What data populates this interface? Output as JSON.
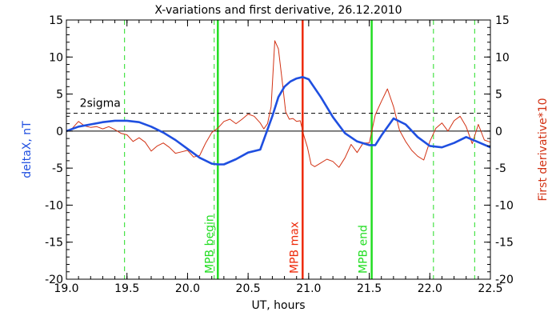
{
  "chart_data": {
    "type": "line",
    "title": "X-variations and first derivative, 26.12.2010",
    "xlabel": "UT, hours",
    "ylabel_left": "deltaX, nT",
    "ylabel_right": "First derivative*10",
    "xlim": [
      19.0,
      22.5
    ],
    "ylim": [
      -20,
      15
    ],
    "xticks": [
      "19.0",
      "19.5",
      "20.0",
      "20.5",
      "21.0",
      "21.5",
      "22.0",
      "22.5"
    ],
    "yticks_left": [
      "-20",
      "-15",
      "-10",
      "-5",
      "0",
      "5",
      "10",
      "15"
    ],
    "yticks_right": [
      "-20",
      "-15",
      "-10",
      "-5",
      "0",
      "5",
      "10",
      "15"
    ],
    "colors": {
      "deltaX": "#1f4fe0",
      "derivative": "#d23214",
      "mpb_begin_end": "#22dd22",
      "mpb_max": "#ee2a0a",
      "dashed_markers": "#22dd22",
      "axis": "#000000"
    },
    "threshold": {
      "label": "2sigma",
      "value": 2.4
    },
    "zero_line": 0,
    "vertical_markers": [
      {
        "label": "MPB begin",
        "x": 20.25,
        "color": "#22dd22",
        "style": "solid"
      },
      {
        "label": "MPB max",
        "x": 20.95,
        "color": "#ee2a0a",
        "style": "solid"
      },
      {
        "label": "MPB end",
        "x": 21.52,
        "color": "#22dd22",
        "style": "solid"
      }
    ],
    "dashed_markers": [
      19.48,
      20.22,
      22.03,
      22.37
    ],
    "series": [
      {
        "key": "deltaX",
        "x": [
          19.0,
          19.1,
          19.2,
          19.3,
          19.4,
          19.5,
          19.6,
          19.7,
          19.8,
          19.9,
          20.0,
          20.1,
          20.2,
          20.25,
          20.3,
          20.4,
          20.5,
          20.6,
          20.7,
          20.75,
          20.8,
          20.85,
          20.9,
          20.95,
          21.0,
          21.1,
          21.2,
          21.3,
          21.4,
          21.5,
          21.55,
          21.6,
          21.7,
          21.8,
          21.9,
          22.0,
          22.1,
          22.2,
          22.3,
          22.4,
          22.5
        ],
        "values": [
          0,
          0.6,
          0.9,
          1.2,
          1.4,
          1.4,
          1.2,
          0.6,
          -0.2,
          -1.2,
          -2.4,
          -3.6,
          -4.4,
          -4.5,
          -4.5,
          -3.8,
          -2.9,
          -2.5,
          2.0,
          4.6,
          6.0,
          6.7,
          7.1,
          7.3,
          7.0,
          4.6,
          1.9,
          -0.3,
          -1.4,
          -1.9,
          -1.9,
          -0.6,
          1.7,
          0.9,
          -0.8,
          -2.0,
          -2.2,
          -1.6,
          -0.8,
          -1.5,
          -2.2
        ]
      },
      {
        "key": "derivative",
        "x": [
          19.0,
          19.05,
          19.1,
          19.15,
          19.2,
          19.25,
          19.3,
          19.35,
          19.4,
          19.45,
          19.5,
          19.55,
          19.6,
          19.65,
          19.7,
          19.75,
          19.8,
          19.85,
          19.9,
          19.95,
          20.0,
          20.05,
          20.1,
          20.15,
          20.2,
          20.25,
          20.3,
          20.35,
          20.4,
          20.45,
          20.5,
          20.55,
          20.6,
          20.63,
          20.66,
          20.69,
          20.72,
          20.75,
          20.78,
          20.81,
          20.84,
          20.87,
          20.9,
          20.93,
          20.96,
          20.99,
          21.02,
          21.05,
          21.1,
          21.15,
          21.2,
          21.25,
          21.3,
          21.35,
          21.4,
          21.45,
          21.5,
          21.55,
          21.6,
          21.65,
          21.7,
          21.75,
          21.8,
          21.85,
          21.9,
          21.95,
          22.0,
          22.05,
          22.1,
          22.15,
          22.2,
          22.25,
          22.3,
          22.35,
          22.4,
          22.45,
          22.5
        ],
        "values": [
          -0.1,
          0.4,
          1.3,
          0.7,
          0.5,
          0.6,
          0.3,
          0.6,
          0.2,
          -0.3,
          -0.5,
          -1.4,
          -0.9,
          -1.5,
          -2.7,
          -2.0,
          -1.6,
          -2.2,
          -3.0,
          -2.8,
          -2.6,
          -3.5,
          -3.3,
          -1.6,
          -0.2,
          0.4,
          1.3,
          1.6,
          1.0,
          1.6,
          2.3,
          2.0,
          1.1,
          0.3,
          1.0,
          3.3,
          12.2,
          11.1,
          7.0,
          2.6,
          1.6,
          1.7,
          1.3,
          1.4,
          -0.6,
          -2.2,
          -4.5,
          -4.8,
          -4.3,
          -3.8,
          -4.1,
          -4.9,
          -3.6,
          -1.8,
          -2.9,
          -1.6,
          -1.6,
          2.2,
          4.0,
          5.7,
          3.3,
          0.1,
          -1.4,
          -2.6,
          -3.4,
          -3.9,
          -1.4,
          0.4,
          1.1,
          0.0,
          1.4,
          2.0,
          0.6,
          -1.7,
          0.9,
          -1.2,
          -1.5
        ]
      }
    ]
  }
}
